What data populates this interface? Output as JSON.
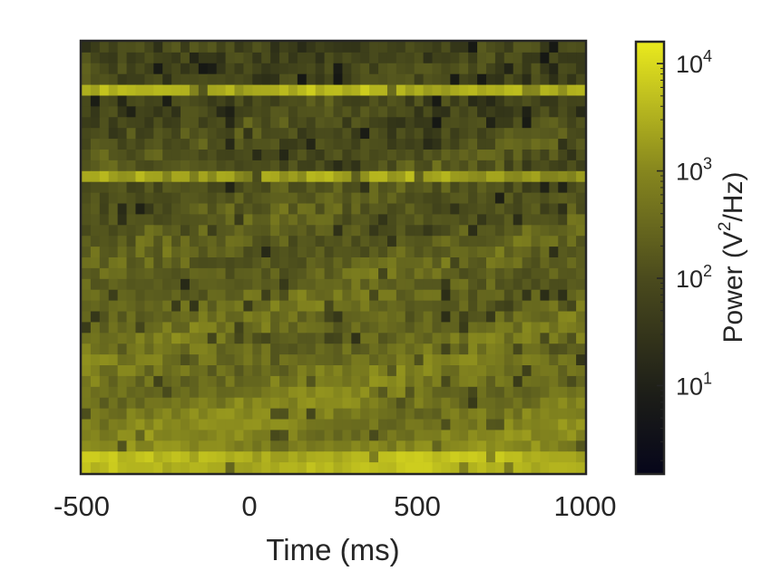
{
  "chart_data": {
    "type": "heatmap",
    "title": "",
    "xlabel": "Time (ms)",
    "ylabel": "",
    "x_ticks": [
      -500,
      0,
      500,
      1000
    ],
    "x_tick_labels": [
      "-500",
      "0",
      "500",
      "1000"
    ],
    "xlim": [
      -500,
      1000
    ],
    "y_ticks": [],
    "colorbar": {
      "label": "Power (V²/Hz)",
      "label_parts": {
        "prefix": "Power (V",
        "sup": "2",
        "suffix": "/Hz)"
      },
      "scale": "log",
      "range": [
        1.5,
        16000
      ],
      "ticks": [
        10,
        100,
        1000,
        10000
      ],
      "tick_labels": [
        {
          "base": "10",
          "exp": "1"
        },
        {
          "base": "10",
          "exp": "2"
        },
        {
          "base": "10",
          "exp": "3"
        },
        {
          "base": "10",
          "exp": "4"
        }
      ],
      "colormap": {
        "low": "#08081a",
        "mid": "#5a5a1e",
        "high": "#e6e61e"
      }
    },
    "grid": false
  }
}
